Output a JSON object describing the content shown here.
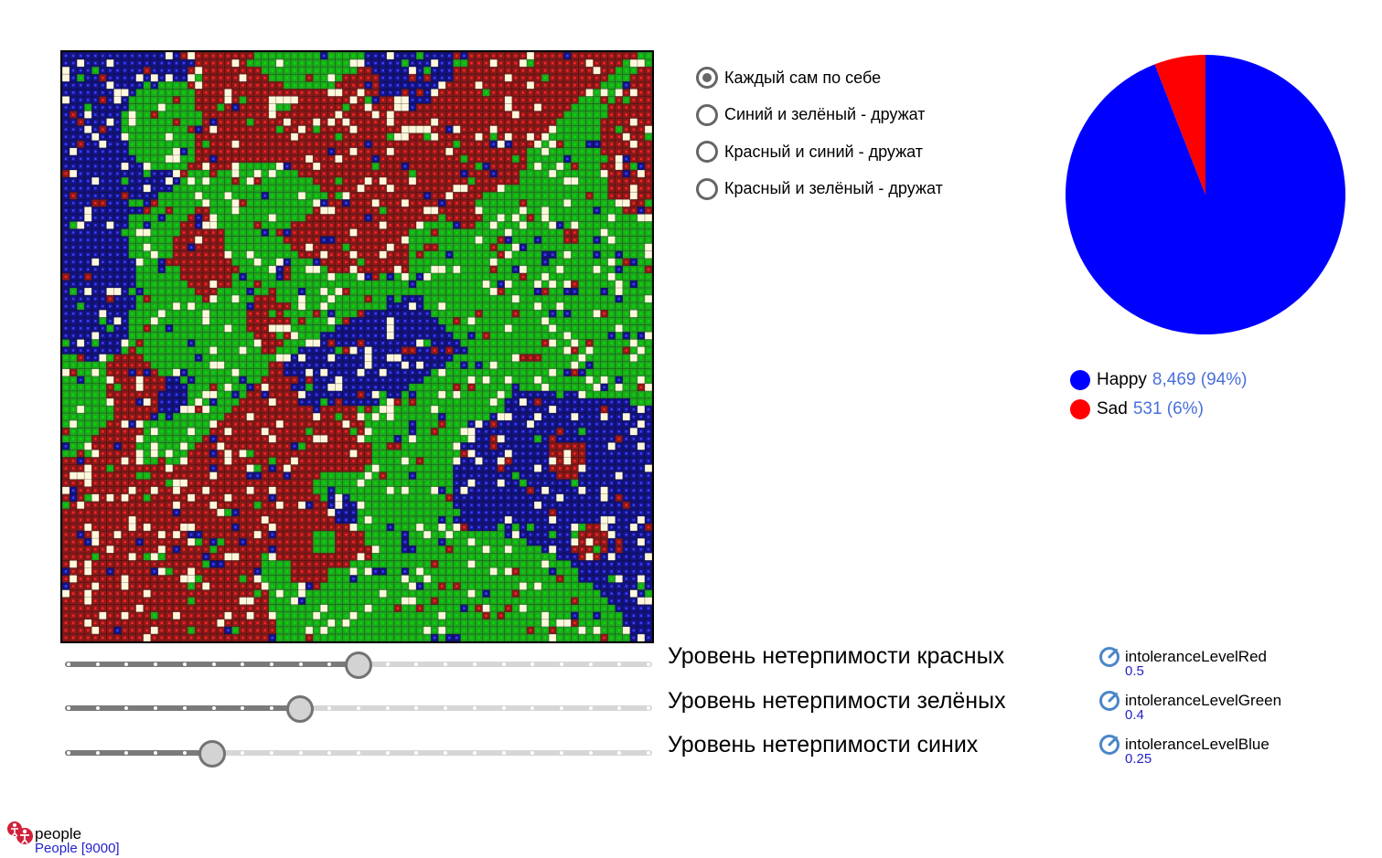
{
  "radio_group": {
    "options": [
      {
        "label": "Каждый сам по себе",
        "checked": true
      },
      {
        "label": "Синий и зелёный - дружат",
        "checked": false
      },
      {
        "label": "Красный и синий - дружат",
        "checked": false
      },
      {
        "label": "Красный и зелёный - дружат",
        "checked": false
      }
    ]
  },
  "grid": {
    "cell_colors": {
      "green": "#1fa81f",
      "red": "#8b1a1a",
      "blue": "#141482",
      "empty": "#fff8dc"
    },
    "dot_colors": {
      "green": "#00dd00",
      "red": "#ff2222",
      "blue": "#3c3cff",
      "empty": "#fff8dc"
    }
  },
  "chart_data": {
    "type": "pie",
    "slices": [
      {
        "name": "Happy",
        "value": 8469,
        "label": "8,469 (94%)",
        "color": "#0000ff"
      },
      {
        "name": "Sad",
        "value": 531,
        "label": "531 (6%)",
        "color": "#ff0000"
      }
    ]
  },
  "sliders": [
    {
      "label": "Уровень нетерпимости красных",
      "value": 0.5,
      "min": 0,
      "max": 1,
      "ticks": 21
    },
    {
      "label": "Уровень нетерпимости зелёных",
      "value": 0.4,
      "min": 0,
      "max": 1,
      "ticks": 21
    },
    {
      "label": "Уровень нетерпимости синих",
      "value": 0.25,
      "min": 0,
      "max": 1,
      "ticks": 21
    }
  ],
  "params": [
    {
      "name": "intoleranceLevelRed",
      "value": "0.5"
    },
    {
      "name": "intoleranceLevelGreen",
      "value": "0.4"
    },
    {
      "name": "intoleranceLevelBlue",
      "value": "0.25"
    }
  ],
  "agents": {
    "name": "people",
    "count_label": "People [9000]"
  },
  "icons": {
    "param": "gauge-icon",
    "agents": "people-icon"
  }
}
